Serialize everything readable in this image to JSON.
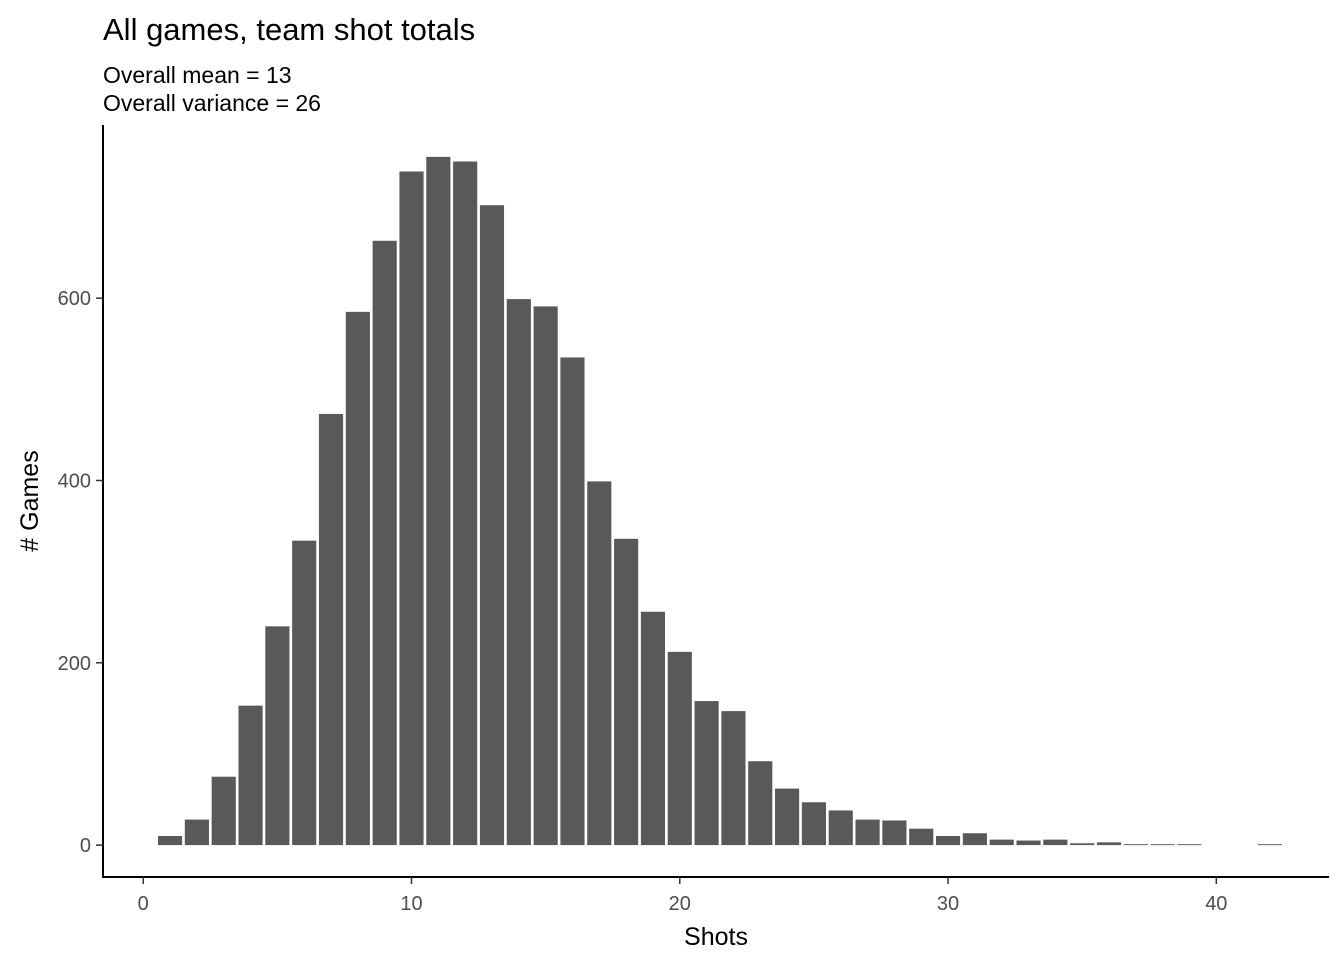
{
  "chart_data": {
    "type": "bar",
    "title": "All games, team shot totals",
    "subtitle_lines": [
      "Overall mean =  13",
      "Overall variance =  26"
    ],
    "xlabel": "Shots",
    "ylabel": "# Games",
    "xlim": [
      -1.5,
      44.2
    ],
    "ylim": [
      -35,
      790
    ],
    "x_ticks": [
      0,
      10,
      20,
      30,
      40
    ],
    "y_ticks": [
      0,
      200,
      400,
      600
    ],
    "grid": false,
    "bar_color": "#595959",
    "x": [
      1,
      2,
      3,
      4,
      5,
      6,
      7,
      8,
      9,
      10,
      11,
      12,
      13,
      14,
      15,
      16,
      17,
      18,
      19,
      20,
      21,
      22,
      23,
      24,
      25,
      26,
      27,
      28,
      29,
      30,
      31,
      32,
      33,
      34,
      35,
      36,
      37,
      38,
      39,
      42
    ],
    "values": [
      10,
      28,
      75,
      153,
      240,
      334,
      473,
      585,
      663,
      739,
      755,
      750,
      702,
      599,
      591,
      535,
      399,
      336,
      256,
      212,
      158,
      147,
      92,
      62,
      47,
      38,
      28,
      27,
      18,
      10,
      13,
      6,
      5,
      6,
      2,
      3,
      1,
      1,
      1,
      1
    ]
  }
}
